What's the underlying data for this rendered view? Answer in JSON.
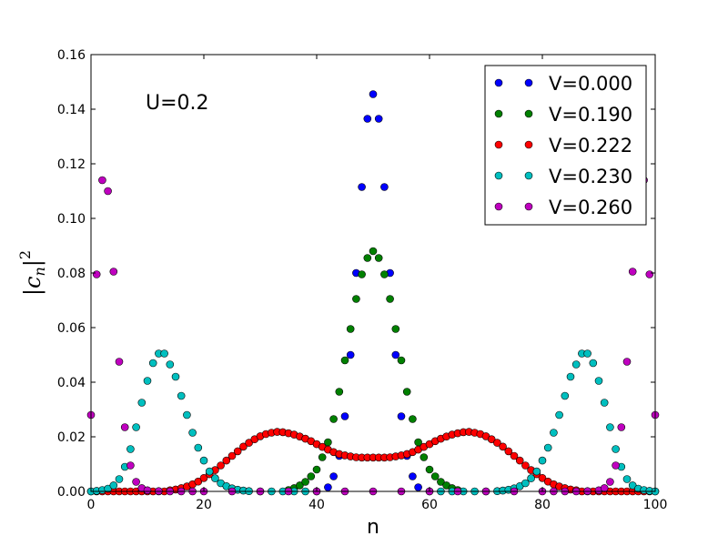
{
  "chart_data": {
    "type": "scatter",
    "title": "",
    "xlabel": "n",
    "ylabel": "|c_n|^2",
    "ylabel_parts": {
      "bar_left": "|",
      "c": "c",
      "sub": "n",
      "bar_right": "|",
      "sup": "2"
    },
    "annotation": "U=0.2",
    "xlim": [
      0,
      100
    ],
    "ylim": [
      0,
      0.16
    ],
    "xticks": [
      0,
      20,
      40,
      60,
      80,
      100
    ],
    "xtick_labels": [
      "0",
      "20",
      "40",
      "60",
      "80",
      "100"
    ],
    "yticks": [
      0.0,
      0.02,
      0.04,
      0.06,
      0.08,
      0.1,
      0.12,
      0.14,
      0.16
    ],
    "ytick_labels": [
      "0.00",
      "0.02",
      "0.04",
      "0.06",
      "0.08",
      "0.10",
      "0.12",
      "0.14",
      "0.16"
    ],
    "grid": false,
    "legend_position": "top-right",
    "series": [
      {
        "name": "V=0.000",
        "color": "#0000ff",
        "x": [
          42,
          43,
          44,
          45,
          46,
          47,
          48,
          49,
          50,
          51,
          52,
          53,
          54,
          55,
          56,
          57,
          58
        ],
        "y": [
          0.0015,
          0.0055,
          0.013,
          0.0275,
          0.05,
          0.08,
          0.1115,
          0.1365,
          0.1455,
          0.1365,
          0.1115,
          0.08,
          0.05,
          0.0275,
          0.013,
          0.0055,
          0.0015
        ]
      },
      {
        "name": "V=0.190",
        "color": "#008000",
        "x": [
          35,
          36,
          37,
          38,
          39,
          40,
          41,
          42,
          43,
          44,
          45,
          46,
          47,
          48,
          49,
          50,
          51,
          52,
          53,
          54,
          55,
          56,
          57,
          58,
          59,
          60,
          61,
          62,
          63,
          64,
          65
        ],
        "y": [
          0.0005,
          0.0012,
          0.0022,
          0.0035,
          0.0055,
          0.008,
          0.0125,
          0.018,
          0.0265,
          0.0365,
          0.048,
          0.0595,
          0.0705,
          0.0795,
          0.0855,
          0.088,
          0.0855,
          0.0795,
          0.0705,
          0.0595,
          0.048,
          0.0365,
          0.0265,
          0.018,
          0.0125,
          0.008,
          0.0055,
          0.0035,
          0.0022,
          0.0012,
          0.0005
        ]
      },
      {
        "name": "V=0.222",
        "color": "#ff0000",
        "x": [
          0,
          1,
          2,
          3,
          4,
          5,
          6,
          7,
          8,
          9,
          10,
          11,
          12,
          13,
          14,
          15,
          16,
          17,
          18,
          19,
          20,
          21,
          22,
          23,
          24,
          25,
          26,
          27,
          28,
          29,
          30,
          31,
          32,
          33,
          34,
          35,
          36,
          37,
          38,
          39,
          40,
          41,
          42,
          43,
          44,
          45,
          46,
          47,
          48,
          49,
          50,
          51,
          52,
          53,
          54,
          55,
          56,
          57,
          58,
          59,
          60,
          61,
          62,
          63,
          64,
          65,
          66,
          67,
          68,
          69,
          70,
          71,
          72,
          73,
          74,
          75,
          76,
          77,
          78,
          79,
          80,
          81,
          82,
          83,
          84,
          85,
          86,
          87,
          88,
          89,
          90,
          91,
          92,
          93,
          94,
          95,
          96,
          97,
          98,
          99,
          100
        ],
        "y": [
          0.0,
          0.0,
          0.0,
          0.0,
          0.0,
          0.0,
          0.0,
          0.0,
          0.0,
          0.0,
          0.0,
          0.0,
          0.0,
          0.0,
          0.0004,
          0.0007,
          0.0012,
          0.0018,
          0.0026,
          0.0036,
          0.0049,
          0.0063,
          0.0078,
          0.0095,
          0.0113,
          0.013,
          0.0147,
          0.0164,
          0.0178,
          0.0191,
          0.0202,
          0.021,
          0.0215,
          0.0218,
          0.0217,
          0.0213,
          0.0208,
          0.0201,
          0.0193,
          0.0184,
          0.0173,
          0.0163,
          0.0153,
          0.0144,
          0.0137,
          0.0132,
          0.0128,
          0.0125,
          0.0124,
          0.0124,
          0.0124,
          0.0124,
          0.0124,
          0.0125,
          0.0128,
          0.0132,
          0.0137,
          0.0144,
          0.0153,
          0.0163,
          0.0173,
          0.0184,
          0.0193,
          0.0201,
          0.0208,
          0.0213,
          0.0217,
          0.0218,
          0.0215,
          0.021,
          0.0202,
          0.0191,
          0.0178,
          0.0164,
          0.0147,
          0.013,
          0.0113,
          0.0095,
          0.0078,
          0.0063,
          0.0049,
          0.0036,
          0.0026,
          0.0018,
          0.0012,
          0.0007,
          0.0004,
          0.0,
          0.0,
          0.0,
          0.0,
          0.0,
          0.0,
          0.0,
          0.0,
          0.0,
          0.0,
          0.0,
          0.0,
          0.0,
          0.0
        ]
      },
      {
        "name": "V=0.230",
        "color": "#00bfbf",
        "x": [
          0,
          1,
          2,
          3,
          4,
          5,
          6,
          7,
          8,
          9,
          10,
          11,
          12,
          13,
          14,
          15,
          16,
          17,
          18,
          19,
          20,
          21,
          22,
          23,
          24,
          25,
          26,
          27,
          28,
          30,
          32,
          34,
          36,
          38,
          40,
          60,
          62,
          64,
          66,
          68,
          70,
          72,
          73,
          74,
          75,
          76,
          77,
          78,
          79,
          80,
          81,
          82,
          83,
          84,
          85,
          86,
          87,
          88,
          89,
          90,
          91,
          92,
          93,
          94,
          95,
          96,
          97,
          98,
          99,
          100
        ],
        "y": [
          0.0,
          0.0002,
          0.0005,
          0.001,
          0.0022,
          0.0045,
          0.009,
          0.0155,
          0.0235,
          0.0325,
          0.0405,
          0.047,
          0.0505,
          0.0505,
          0.0465,
          0.042,
          0.035,
          0.028,
          0.0215,
          0.016,
          0.0113,
          0.0073,
          0.0048,
          0.003,
          0.0019,
          0.0011,
          0.0006,
          0.0003,
          0.0001,
          0.0,
          0.0,
          0.0,
          0.0,
          0.0,
          0.0,
          0.0,
          0.0,
          0.0,
          0.0,
          0.0,
          0.0,
          0.0001,
          0.0003,
          0.0006,
          0.0011,
          0.0019,
          0.003,
          0.0048,
          0.0073,
          0.0113,
          0.016,
          0.0215,
          0.028,
          0.035,
          0.042,
          0.0465,
          0.0505,
          0.0505,
          0.047,
          0.0405,
          0.0325,
          0.0235,
          0.0155,
          0.009,
          0.0045,
          0.0022,
          0.001,
          0.0005,
          0.0002,
          0.0
        ]
      },
      {
        "name": "V=0.260",
        "color": "#bf00bf",
        "x": [
          0,
          1,
          2,
          3,
          4,
          5,
          6,
          7,
          8,
          9,
          10,
          12,
          14,
          16,
          18,
          20,
          25,
          30,
          35,
          40,
          45,
          50,
          55,
          60,
          65,
          70,
          75,
          80,
          82,
          84,
          86,
          88,
          90,
          91,
          92,
          93,
          94,
          95,
          96,
          97,
          98,
          99,
          100
        ],
        "y": [
          0.028,
          0.0795,
          0.114,
          0.11,
          0.0805,
          0.0475,
          0.0235,
          0.0095,
          0.0035,
          0.0012,
          0.0004,
          0.0001,
          0.0,
          0.0,
          0.0,
          0.0,
          0.0,
          0.0,
          0.0,
          0.0,
          0.0,
          0.0,
          0.0,
          0.0,
          0.0,
          0.0,
          0.0,
          0.0,
          0.0,
          0.0,
          0.0,
          0.0001,
          0.0004,
          0.0012,
          0.0035,
          0.0095,
          0.0235,
          0.0475,
          0.0805,
          0.11,
          0.114,
          0.0795,
          0.028
        ]
      }
    ]
  }
}
